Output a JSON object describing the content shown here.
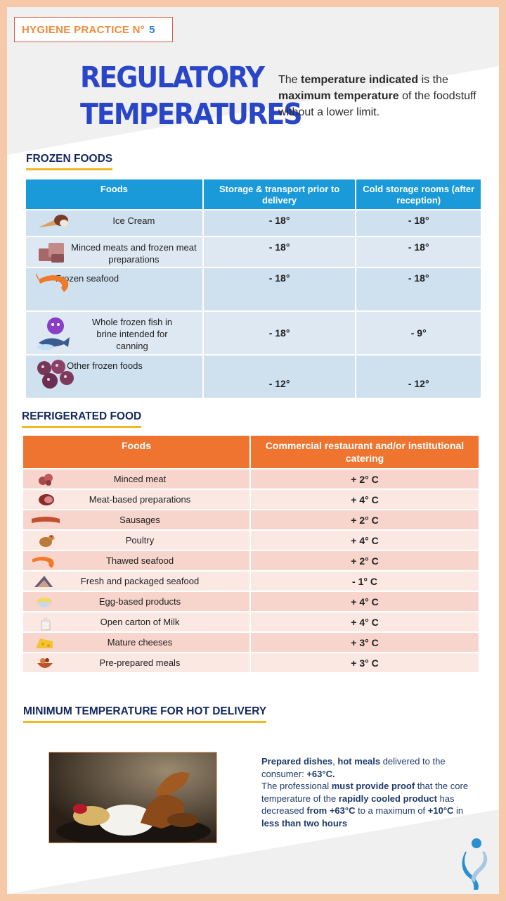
{
  "badge": {
    "text": "HYGIENE PRACTICE N°",
    "number": "5"
  },
  "title": {
    "line1": "REGULATORY",
    "line2": "TEMPERATURES"
  },
  "intro": {
    "p1": "The ",
    "b1": "temperature indicated",
    "p2": " is the ",
    "b2": "maximum temperature",
    "p3": " of the foodstuff without a lower limit."
  },
  "frozen": {
    "heading": "FROZEN FOODS",
    "headers": [
      "Foods",
      "Storage & transport prior to delivery",
      "Cold storage rooms (after reception)"
    ],
    "rows": [
      {
        "icon": "ice-cream-icon",
        "food": "Ice Cream",
        "storage": "- 18°",
        "cold": "- 18°"
      },
      {
        "icon": "minced-meat-icon",
        "food": "Minced meats and frozen meat preparations",
        "storage": "- 18°",
        "cold": "- 18°"
      },
      {
        "icon": "shrimp-icon",
        "food": "Frozen seafood",
        "storage": "- 18°",
        "cold": "- 18°"
      },
      {
        "icon": "fish-virus-icon",
        "food": "Whole frozen fish in brine intended for canning",
        "storage": "- 18°",
        "cold": "- 9°"
      },
      {
        "icon": "frozen-berries-icon",
        "food": "Other frozen foods",
        "storage": "- 12°",
        "cold": "- 12°"
      }
    ]
  },
  "refrigerated": {
    "heading": "REFRIGERATED FOOD",
    "headers": [
      "Foods",
      "Commercial restaurant and/or institutional catering"
    ],
    "rows": [
      {
        "icon": "minced-meat-icon",
        "food": "Minced meat",
        "temp": "+ 2° C"
      },
      {
        "icon": "ham-icon",
        "food": "Meat-based preparations",
        "temp": "+ 4° C"
      },
      {
        "icon": "sausage-icon",
        "food": "Sausages",
        "temp": "+ 2° C"
      },
      {
        "icon": "chicken-icon",
        "food": "Poultry",
        "temp": "+ 4° C"
      },
      {
        "icon": "shrimp-icon",
        "food": "Thawed seafood",
        "temp": "+ 2° C"
      },
      {
        "icon": "shellfish-icon",
        "food": "Fresh and packaged seafood",
        "temp": "- 1° C"
      },
      {
        "icon": "egg-bowl-icon",
        "food": "Egg-based products",
        "temp": "+ 4° C"
      },
      {
        "icon": "milk-carton-icon",
        "food": "Open carton of Milk",
        "temp": "+ 4° C"
      },
      {
        "icon": "cheese-icon",
        "food": "Mature cheeses",
        "temp": "+ 3° C"
      },
      {
        "icon": "prepared-meal-icon",
        "food": "Pre-prepared meals",
        "temp": "+ 3° C"
      }
    ]
  },
  "hot": {
    "heading": "MINIMUM TEMPERATURE FOR HOT DELIVERY",
    "t1": "Prepared dishes",
    "t2": ", ",
    "t3": "hot meals",
    "t4": " delivered to the consumer: ",
    "t5": "+63°C.",
    "t6": "The professional ",
    "t7": "must provide proof",
    "t8": " that the core temperature of the ",
    "t9": "rapidly cooled product",
    "t10": " has decreased ",
    "t11": "from +63°C",
    "t12": " to a maximum of ",
    "t13": "+10°C",
    "t14": " in ",
    "t15": "less than two hours"
  },
  "colors": {
    "frozen_header": "#1a9ad8",
    "refrigerated_header": "#ee7430",
    "title": "#2a46c8",
    "underline": "#f2b822"
  }
}
